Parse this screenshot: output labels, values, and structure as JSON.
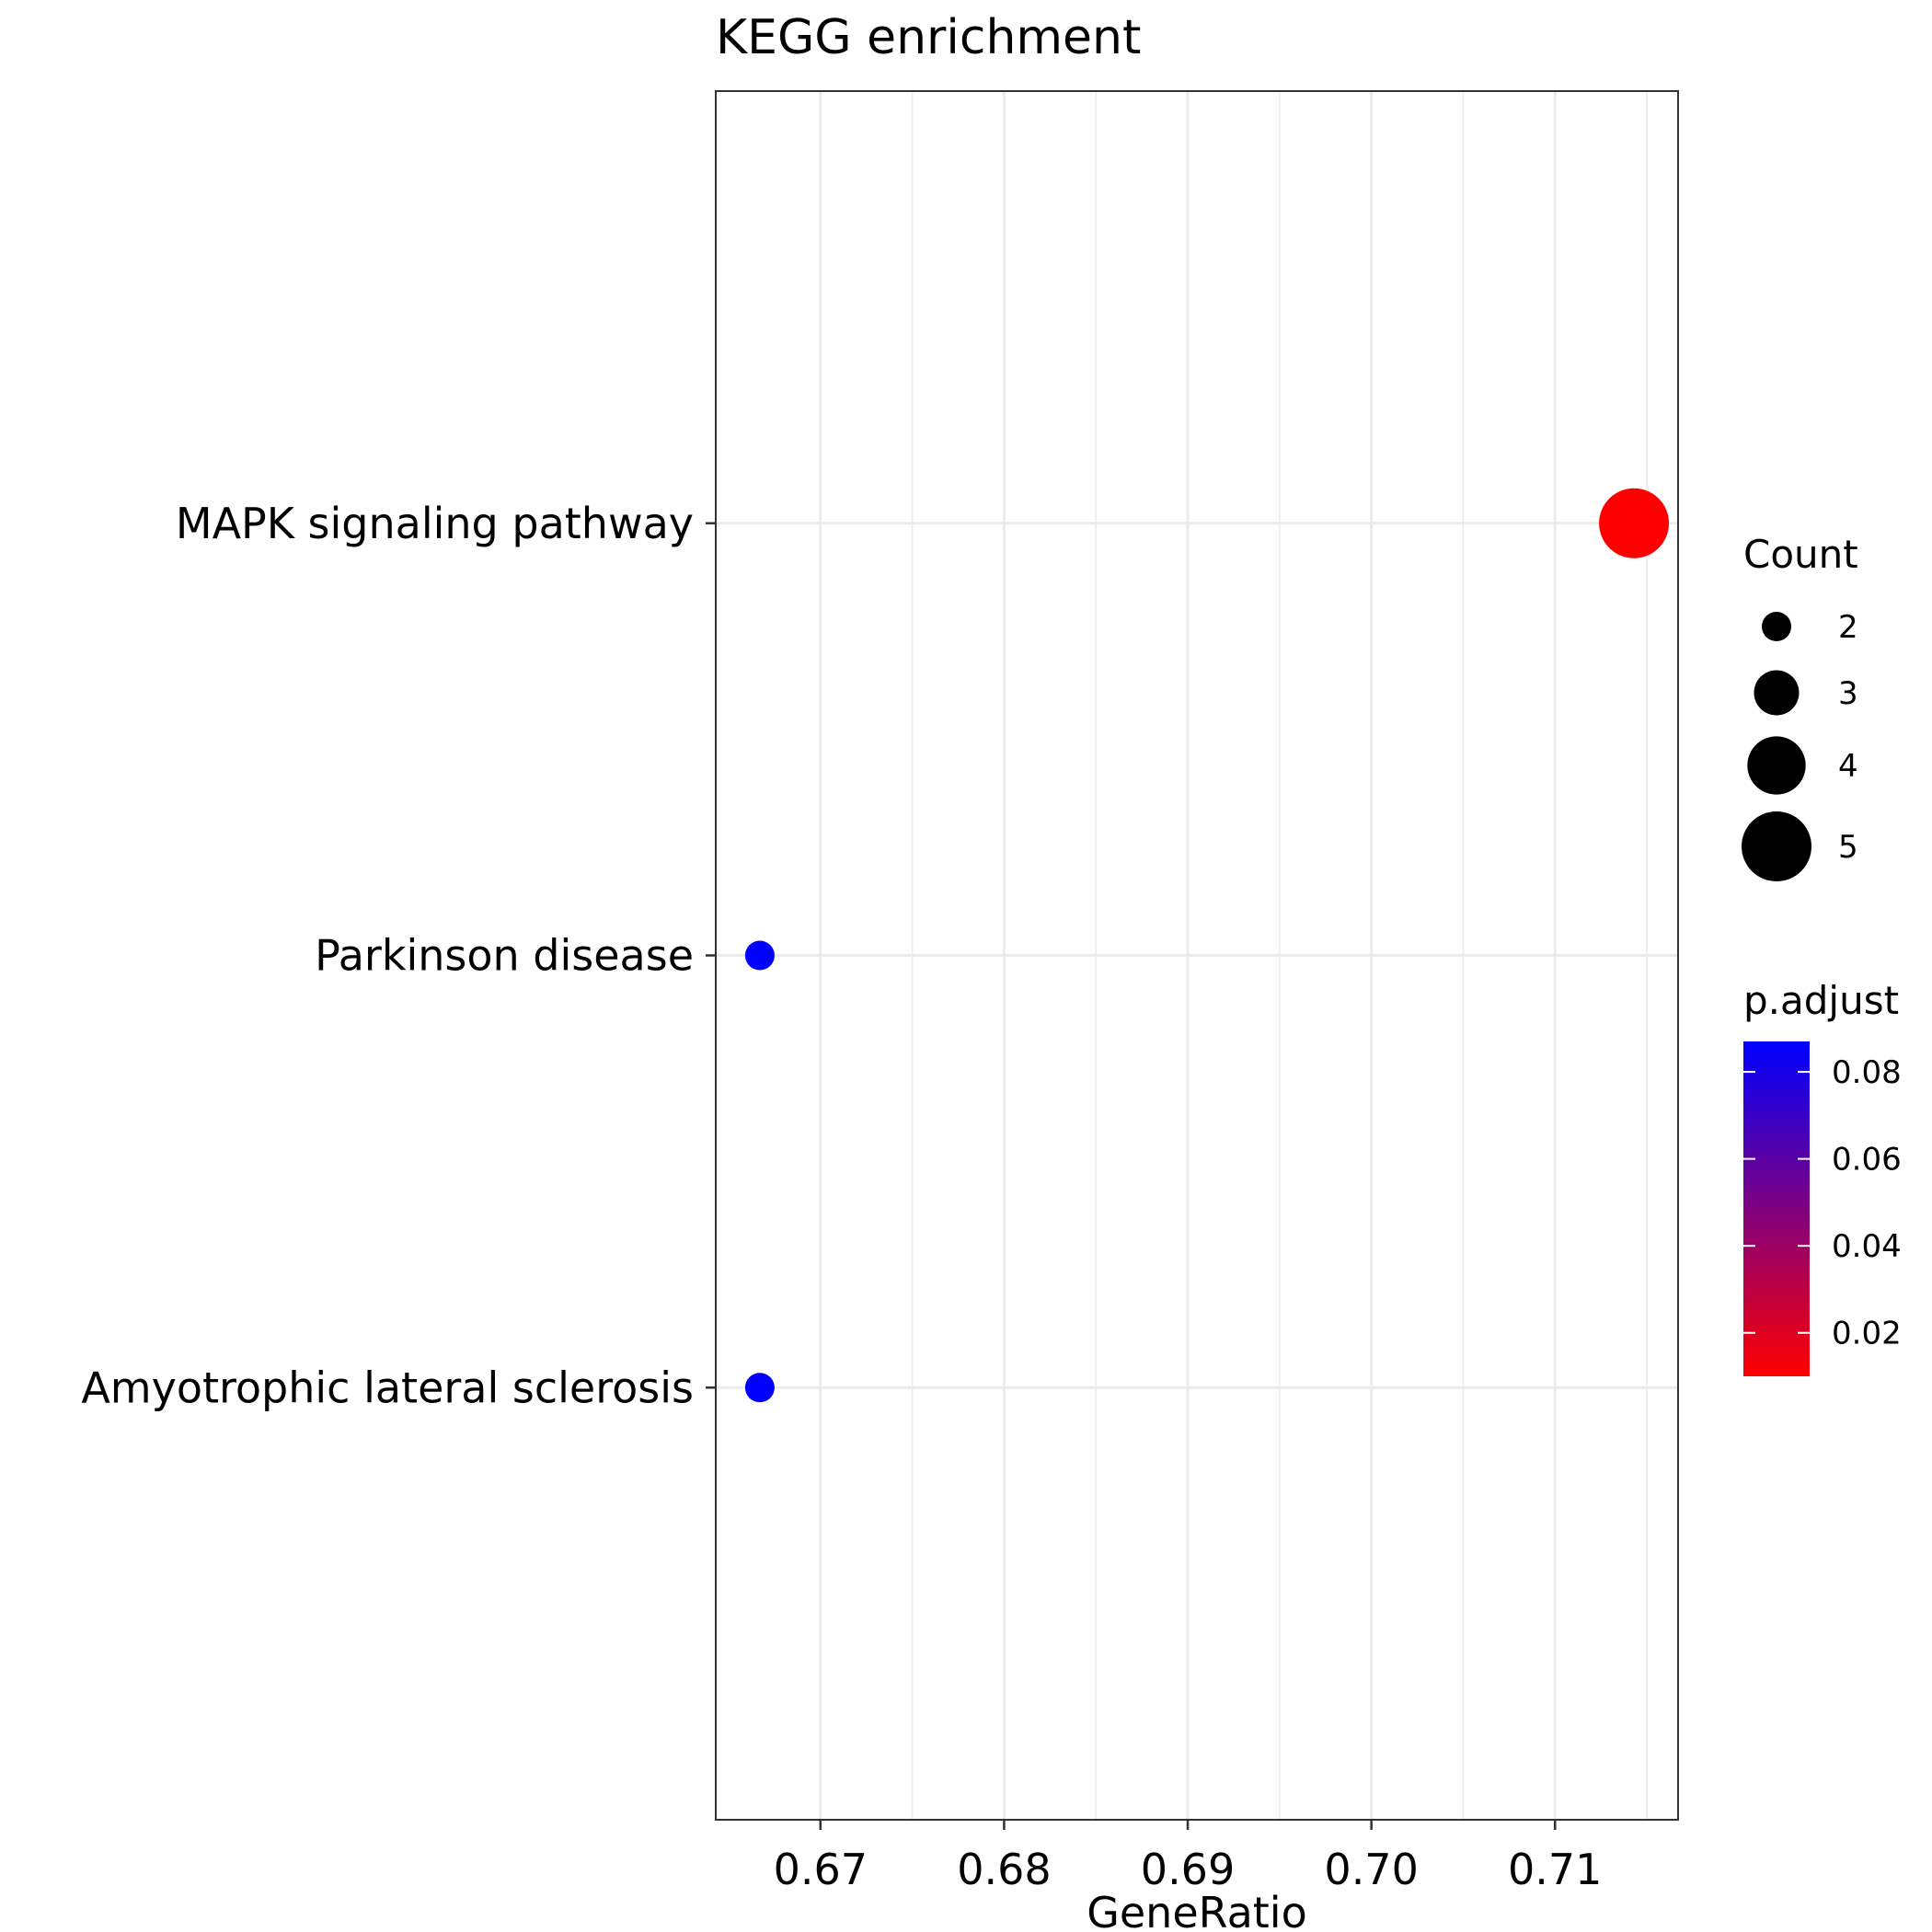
{
  "chart_data": {
    "type": "scatter",
    "title": "KEGG enrichment",
    "xlabel": "GeneRatio",
    "ylabel": "",
    "xlim": [
      0.6643,
      0.7167
    ],
    "x_ticks": [
      0.67,
      0.68,
      0.69,
      0.7,
      0.71
    ],
    "x_tick_labels": [
      "0.67",
      "0.68",
      "0.69",
      "0.70",
      "0.71"
    ],
    "categories": [
      "MAPK signaling pathway",
      "Parkinson disease",
      "Amyotrophic lateral sclerosis"
    ],
    "points": [
      {
        "term": "MAPK signaling pathway",
        "gene_ratio": 0.7143,
        "count": 5,
        "p_adjust": 0.01
      },
      {
        "term": "Parkinson disease",
        "gene_ratio": 0.6667,
        "count": 2,
        "p_adjust": 0.087
      },
      {
        "term": "Amyotrophic lateral sclerosis",
        "gene_ratio": 0.6667,
        "count": 2,
        "p_adjust": 0.087
      }
    ],
    "grid": true,
    "legend_position": "right",
    "size_legend": {
      "title": "Count",
      "entries": [
        {
          "label": "2",
          "value": 2
        },
        {
          "label": "3",
          "value": 3
        },
        {
          "label": "4",
          "value": 4
        },
        {
          "label": "5",
          "value": 5
        }
      ]
    },
    "color_legend": {
      "title": "p.adjust",
      "range": [
        0.01,
        0.087
      ],
      "low_color": "#ff0000",
      "high_color": "#0000ff",
      "ticks": [
        {
          "label": "0.08",
          "value": 0.08
        },
        {
          "label": "0.06",
          "value": 0.06
        },
        {
          "label": "0.04",
          "value": 0.04
        },
        {
          "label": "0.02",
          "value": 0.02
        }
      ]
    }
  }
}
